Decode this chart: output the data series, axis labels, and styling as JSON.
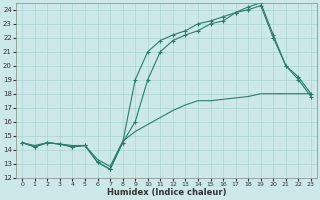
{
  "xlabel": "Humidex (Indice chaleur)",
  "xlim": [
    -0.5,
    23.5
  ],
  "ylim": [
    12,
    24.5
  ],
  "yticks": [
    12,
    13,
    14,
    15,
    16,
    17,
    18,
    19,
    20,
    21,
    22,
    23,
    24
  ],
  "xticks": [
    0,
    1,
    2,
    3,
    4,
    5,
    6,
    7,
    8,
    9,
    10,
    11,
    12,
    13,
    14,
    15,
    16,
    17,
    18,
    19,
    20,
    21,
    22,
    23
  ],
  "line_color": "#2a7d6b",
  "bg_color": "#cce8e8",
  "grid_color": "#aad4d4",
  "line1_x": [
    0,
    1,
    2,
    3,
    4,
    5,
    6,
    7,
    8,
    9,
    10,
    11,
    12,
    13,
    14,
    15,
    16,
    17,
    18,
    19,
    20,
    21,
    22,
    23
  ],
  "line1_y": [
    14.5,
    14.2,
    14.5,
    14.4,
    14.2,
    14.3,
    13.1,
    12.6,
    14.5,
    19.0,
    21.0,
    21.8,
    22.2,
    22.5,
    23.0,
    23.2,
    23.5,
    23.8,
    24.2,
    24.5,
    22.2,
    20.0,
    19.2,
    18.0
  ],
  "line2_x": [
    0,
    1,
    2,
    3,
    4,
    5,
    6,
    7,
    8,
    9,
    10,
    11,
    12,
    13,
    14,
    15,
    16,
    17,
    18,
    19,
    20,
    21,
    22,
    23
  ],
  "line2_y": [
    14.5,
    14.2,
    14.5,
    14.4,
    14.2,
    14.3,
    13.1,
    12.6,
    14.5,
    16.0,
    19.0,
    21.0,
    21.8,
    22.2,
    22.5,
    23.0,
    23.2,
    23.8,
    24.0,
    24.3,
    22.0,
    20.0,
    19.0,
    17.8
  ],
  "line3_x": [
    0,
    1,
    2,
    3,
    4,
    5,
    6,
    7,
    8,
    9,
    10,
    11,
    12,
    13,
    14,
    15,
    16,
    17,
    18,
    19,
    20,
    21,
    22,
    23
  ],
  "line3_y": [
    14.5,
    14.3,
    14.5,
    14.4,
    14.3,
    14.3,
    13.3,
    12.8,
    14.6,
    15.3,
    15.8,
    16.3,
    16.8,
    17.2,
    17.5,
    17.5,
    17.6,
    17.7,
    17.8,
    18.0,
    18.0,
    18.0,
    18.0,
    18.0
  ]
}
